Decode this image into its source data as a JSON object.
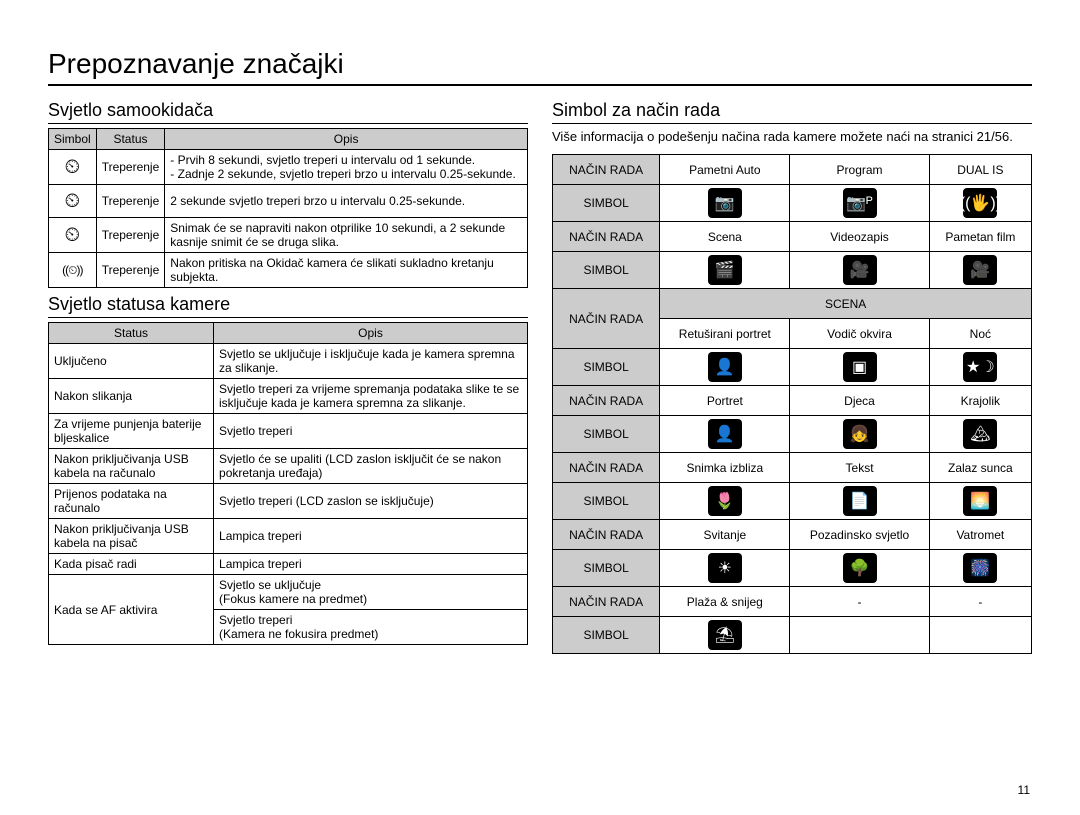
{
  "page": {
    "title": "Prepoznavanje značajki",
    "number": "11"
  },
  "left": {
    "section1": {
      "title": "Svjetlo samookidača",
      "columns": [
        "Simbol",
        "Status",
        "Opis"
      ],
      "rows": [
        {
          "icon": "ico-timer-10",
          "status": "Treperenje",
          "opis": "- Prvih 8 sekundi, svjetlo treperi u intervalu od 1 sekunde.\n- Zadnje 2 sekunde, svjetlo treperi brzo u intervalu 0.25-sekunde."
        },
        {
          "icon": "ico-timer-2",
          "status": "Treperenje",
          "opis": "2 sekunde svjetlo treperi brzo u intervalu 0.25-sekunde."
        },
        {
          "icon": "ico-timer-dbl",
          "status": "Treperenje",
          "opis": "Snimak će se napraviti nakon otprilike 10 sekundi, a 2 sekunde kasnije snimit će se druga slika."
        },
        {
          "icon": "ico-motion",
          "status": "Treperenje",
          "opis": "Nakon pritiska na Okidač kamera će slikati sukladno kretanju subjekta."
        }
      ]
    },
    "section2": {
      "title": "Svjetlo statusa kamere",
      "columns": [
        "Status",
        "Opis"
      ],
      "rows": [
        {
          "status": "Uključeno",
          "opis": "Svjetlo se uključuje i isključuje kada je kamera spremna za slikanje."
        },
        {
          "status": "Nakon slikanja",
          "opis": "Svjetlo treperi za vrijeme spremanja podataka slike te se isključuje kada je kamera spremna za slikanje."
        },
        {
          "status": "Za vrijeme punjenja baterije bljeskalice",
          "opis": "Svjetlo treperi"
        },
        {
          "status": "Nakon priključivanja USB kabela na računalo",
          "opis": "Svjetlo će se upaliti (LCD zaslon isključit će se nakon pokretanja uređaja)"
        },
        {
          "status": "Prijenos podataka na računalo",
          "opis": "Svjetlo treperi (LCD zaslon se isključuje)"
        },
        {
          "status": "Nakon priključivanja USB kabela na pisač",
          "opis": "Lampica treperi"
        },
        {
          "status": "Kada pisač radi",
          "opis": "Lampica treperi"
        }
      ],
      "af_row": {
        "status": "Kada se AF aktivira",
        "opis1": "Svjetlo se uključuje\n(Fokus kamere na predmet)",
        "opis2": "Svjetlo treperi\n(Kamera ne fokusira predmet)"
      }
    }
  },
  "right": {
    "title": "Simbol za način rada",
    "intro": "Više informacija o podešenju načina rada kamere možete naći na stranici 21/56.",
    "label_mode": "NAČIN RADA",
    "label_symbol": "SIMBOL",
    "label_scena": "SCENA",
    "group1": [
      "Pametni Auto",
      "Program",
      "DUAL IS"
    ],
    "group1_icons": [
      "📷",
      "📷ᴾ",
      "((🖐))"
    ],
    "group2": [
      "Scena",
      "Videozapis",
      "Pametan film"
    ],
    "group2_icons": [
      "🎬",
      "🎥",
      "🎥"
    ],
    "group3": [
      "Retuširani portret",
      "Vodič okvira",
      "Noć"
    ],
    "group3_icons": [
      "👤",
      "▣",
      "★☽"
    ],
    "group4": [
      "Portret",
      "Djeca",
      "Krajolik"
    ],
    "group4_icons": [
      "👤",
      "👧",
      "🏔"
    ],
    "group5": [
      "Snimka izbliza",
      "Tekst",
      "Zalaz sunca"
    ],
    "group5_icons": [
      "🌷",
      "📄",
      "🌅"
    ],
    "group6": [
      "Svitanje",
      "Pozadinsko svjetlo",
      "Vatromet"
    ],
    "group6_icons": [
      "☀",
      "🌳",
      "🎆"
    ],
    "group7": [
      "Plaža & snijeg",
      "-",
      "-"
    ],
    "group7_icons": [
      "⛱",
      "",
      ""
    ]
  }
}
